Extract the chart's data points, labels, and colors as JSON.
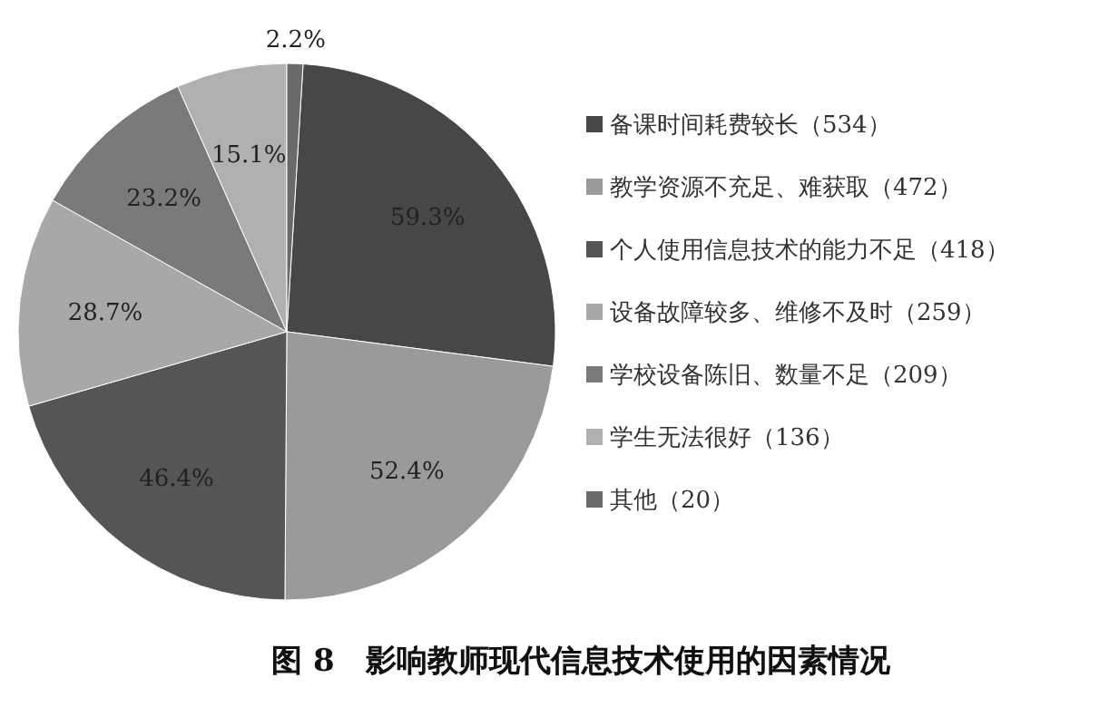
{
  "chart_data": {
    "type": "pie",
    "title": "图 8　影响教师现代信息技术使用的因素情况",
    "categories": [
      "备课时间耗费较长（534）",
      "教学资源不充足、难获取（472）",
      "个人使用信息技术的能力不足（418）",
      "设备故障较多、维修不及时（259）",
      "学校设备陈旧、数量不足（209）",
      "学生无法很好（136）",
      "其他（20）"
    ],
    "values": [
      59.3,
      52.4,
      46.4,
      28.7,
      23.2,
      15.1,
      2.2
    ],
    "value_labels": [
      "59.3%",
      "52.4%",
      "46.4%",
      "28.7%",
      "23.2%",
      "15.1%",
      "2.2%"
    ],
    "colors": [
      "#474747",
      "#9a9a9a",
      "#555555",
      "#a8a8a8",
      "#7a7a7a",
      "#b0b0b0",
      "#6a6a6a"
    ],
    "legend": "right"
  }
}
